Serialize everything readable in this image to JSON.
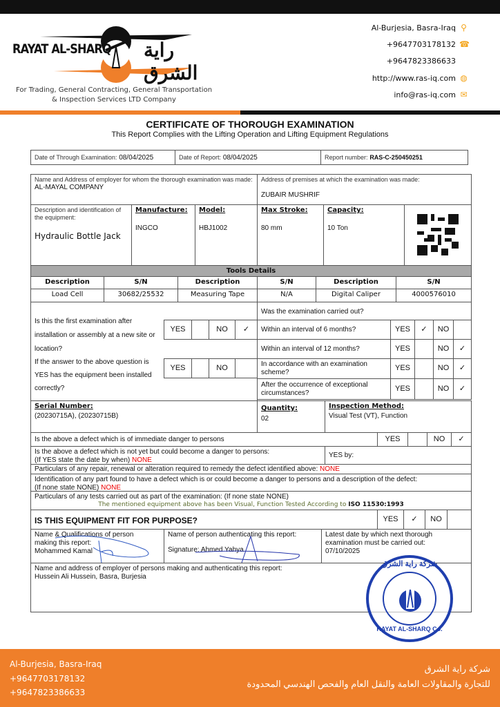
{
  "header": {
    "brand_en": "RAYAT AL-SHARQ",
    "brand_ar": "راية الشرق",
    "tagline1": "For Trading, General Contracting, General Transportation",
    "tagline2": "& Inspection Services LTD Company",
    "contacts": [
      {
        "text": "Al-Burjesia, Basra-Iraq",
        "icon": "location-pin-icon"
      },
      {
        "text": "+9647703178132",
        "icon": "phone-icon"
      },
      {
        "text": "+9647823386633",
        "icon": ""
      },
      {
        "text": "http://www.ras-iq.com",
        "icon": "globe-icon"
      },
      {
        "text": "info@ras-iq.com",
        "icon": "email-icon"
      }
    ]
  },
  "title": "CERTIFICATE OF THOROUGH EXAMINATION",
  "subtitle": "This Report Complies with the Lifting Operation and Lifting Equipment Regulations",
  "info": {
    "exam_label": "Date of Through Examination:",
    "exam_date": "08/04/2025",
    "report_label": "Date of Report:",
    "report_date": "08/04/2025",
    "number_label": "Report number:",
    "number": "RAS-C-250450251"
  },
  "employer": {
    "label": "Name and Address of employer for whom the thorough examination was made:",
    "value": "AL-MAYAL COMPANY"
  },
  "premises": {
    "label": "Address of premises at which the examination was made:",
    "value": "ZUBAIR MUSHRIF"
  },
  "equipment": {
    "label": "Description and identification of the equipment:",
    "value": "Hydraulic Bottle Jack",
    "manufacture_label": "Manufacture:",
    "manufacture": "INGCO",
    "model_label": "Model:",
    "model": "HBJ1002",
    "stroke_label": "Max Stroke:",
    "stroke": "80 mm",
    "capacity_label": "Capacity:",
    "capacity": "10 Ton"
  },
  "tools": {
    "title": "Tools Details",
    "headers": [
      "Description",
      "S/N",
      "Description",
      "S/N",
      "Description",
      "S/N"
    ],
    "values": [
      "Load Cell",
      "30682/25532",
      "Measuring Tape",
      "N/A",
      "Digital Caliper",
      "4000576010"
    ]
  },
  "q_first": {
    "text": "Is this the first examination after installation or assembly at a new site or location?",
    "yes": "YES",
    "no": "NO",
    "answer": "NO"
  },
  "q_installed": {
    "text": "If the answer to the above question is YES has the equipment been installed correctly?",
    "yes": "YES",
    "no": "NO",
    "answer": ""
  },
  "q_carried": {
    "title": "Was the examination carried out?",
    "rows": [
      {
        "text": "Within an interval of 6 months?",
        "answer": "YES"
      },
      {
        "text": "Within an interval of 12 months?",
        "answer": "NO"
      },
      {
        "text": "In accordance with an examination scheme?",
        "answer": "NO"
      },
      {
        "text": "After the occurrence of exceptional circumstances?",
        "answer": "NO"
      }
    ],
    "yes": "YES",
    "no": "NO"
  },
  "check": "✓",
  "serial": {
    "label": "Serial Number:",
    "value": "(20230715A), (20230715B)"
  },
  "quantity": {
    "label": "Quantity:",
    "value": "02"
  },
  "method": {
    "label": "Inspection Method:",
    "value": "Visual Test (VT), Function"
  },
  "danger_now": {
    "text": "Is the above a defect which is of immediate danger to persons",
    "yes": "YES",
    "no": "NO",
    "answer": "NO"
  },
  "danger_future": {
    "text1": "Is the above a defect which is not yet but could become a danger to persons:",
    "text2": "(If YES state the date by when)",
    "value": "NONE",
    "yes_by": "YES by:"
  },
  "repair": {
    "text": "Particulars of any repair, renewal or alteration required to remedy the defect identified above:",
    "value": "NONE"
  },
  "identification": {
    "text1": "Identification of any part found to have a defect which is or could become a danger to persons and a description of the defect:",
    "text2": "(If none state NONE)",
    "value": "NONE"
  },
  "tests": {
    "text": "Particulars of any tests carried out as part of the examination: (If none state NONE)",
    "note": "The mentioned equipment above has been Visual, Function Tested According to",
    "standard": "ISO 11530:1993"
  },
  "fit": {
    "text": "IS THIS EQUIPMENT FIT FOR PURPOSE?",
    "yes": "YES",
    "no": "NO",
    "answer": "YES"
  },
  "persons": {
    "maker_label": "Name & Qualifications of person making this report:",
    "maker": "Mohammed Kamal",
    "auth_label": "Name of person authenticating this report:",
    "auth": "Signature: Ahmed Yahya",
    "next_label": "Latest date by which next thorough examination must be carried out:",
    "next": "07/10/2025"
  },
  "employer_persons": {
    "label": "Name and address of employer of persons making and authenticating this report:",
    "value": "Hussein Ali Hussein, Basra, Burjesia"
  },
  "stamp": {
    "text_en": "RAYAT AL-SHARQ Co.",
    "text_ar": "شركة راية الشرق"
  },
  "footer": {
    "lines": [
      "Al-Burjesia, Basra-Iraq",
      "+9647703178132",
      "+9647823386633"
    ],
    "ar1": "شركة راية الشرق",
    "ar2": "للتجارة والمقاولات العامة والنقل العام والفحص الهندسي المحدودة"
  },
  "colors": {
    "accent": "#ef7f2a",
    "dark": "#111111",
    "stamp": "#1f3fae",
    "red": "#ee0000",
    "note": "#5a6b2c"
  }
}
